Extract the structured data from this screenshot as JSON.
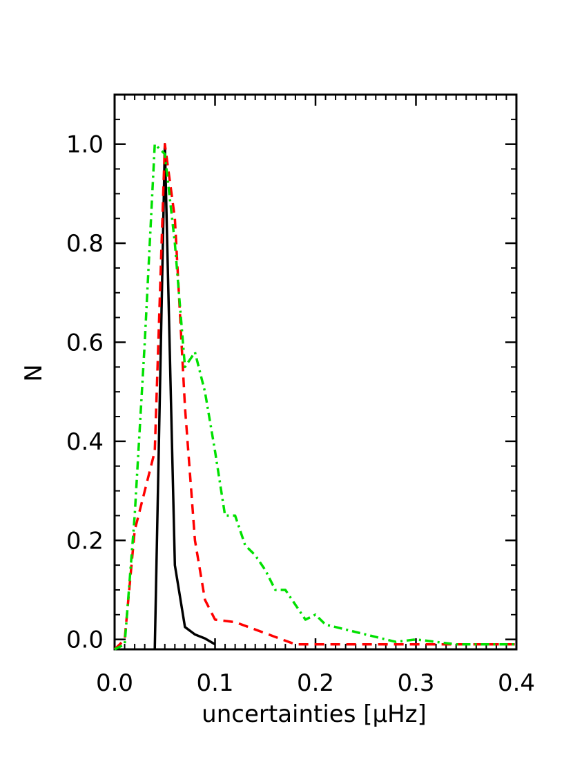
{
  "chart_data": {
    "type": "line",
    "xlabel": "uncertainties [μHz]",
    "ylabel": "N",
    "xlim": [
      0.0,
      0.4
    ],
    "ylim": [
      -0.02,
      1.1
    ],
    "x_ticks": [
      0.0,
      0.1,
      0.2,
      0.3,
      0.4
    ],
    "x_tick_labels": [
      "0.0",
      "0.1",
      "0.2",
      "0.3",
      "0.4"
    ],
    "y_ticks": [
      0.0,
      0.2,
      0.4,
      0.6,
      0.8,
      1.0
    ],
    "y_tick_labels": [
      "0.0",
      "0.2",
      "0.4",
      "0.6",
      "0.8",
      "1.0"
    ],
    "grid": false,
    "series": [
      {
        "color": "#000000",
        "style": "solid",
        "points": [
          [
            0.04,
            -0.02
          ],
          [
            0.05,
            1.0
          ],
          [
            0.06,
            0.15
          ],
          [
            0.07,
            0.025
          ],
          [
            0.08,
            0.01
          ],
          [
            0.09,
            0.002
          ],
          [
            0.1,
            -0.01
          ]
        ]
      },
      {
        "color": "#ff0000",
        "style": "dashed",
        "points": [
          [
            0.0,
            -0.02
          ],
          [
            0.01,
            0.0
          ],
          [
            0.02,
            0.22
          ],
          [
            0.03,
            0.3
          ],
          [
            0.04,
            0.38
          ],
          [
            0.05,
            1.0
          ],
          [
            0.06,
            0.85
          ],
          [
            0.07,
            0.47
          ],
          [
            0.08,
            0.2
          ],
          [
            0.09,
            0.08
          ],
          [
            0.1,
            0.04
          ],
          [
            0.12,
            0.035
          ],
          [
            0.14,
            0.02
          ],
          [
            0.16,
            0.005
          ],
          [
            0.18,
            -0.01
          ],
          [
            0.2,
            -0.01
          ],
          [
            0.25,
            -0.01
          ],
          [
            0.3,
            -0.01
          ],
          [
            0.35,
            -0.01
          ],
          [
            0.4,
            -0.01
          ]
        ]
      },
      {
        "color": "#00e000",
        "style": "dash-dot",
        "points": [
          [
            0.0,
            -0.02
          ],
          [
            0.01,
            -0.01
          ],
          [
            0.02,
            0.25
          ],
          [
            0.03,
            0.6
          ],
          [
            0.04,
            1.0
          ],
          [
            0.05,
            0.98
          ],
          [
            0.06,
            0.8
          ],
          [
            0.07,
            0.55
          ],
          [
            0.08,
            0.58
          ],
          [
            0.09,
            0.5
          ],
          [
            0.1,
            0.38
          ],
          [
            0.11,
            0.25
          ],
          [
            0.12,
            0.25
          ],
          [
            0.13,
            0.19
          ],
          [
            0.14,
            0.17
          ],
          [
            0.15,
            0.14
          ],
          [
            0.16,
            0.1
          ],
          [
            0.17,
            0.1
          ],
          [
            0.18,
            0.07
          ],
          [
            0.19,
            0.04
          ],
          [
            0.2,
            0.05
          ],
          [
            0.21,
            0.03
          ],
          [
            0.22,
            0.025
          ],
          [
            0.23,
            0.02
          ],
          [
            0.24,
            0.015
          ],
          [
            0.25,
            0.01
          ],
          [
            0.26,
            0.005
          ],
          [
            0.28,
            -0.005
          ],
          [
            0.3,
            0.0
          ],
          [
            0.32,
            -0.005
          ],
          [
            0.34,
            -0.01
          ],
          [
            0.36,
            -0.01
          ],
          [
            0.38,
            -0.01
          ],
          [
            0.4,
            -0.01
          ]
        ]
      }
    ]
  }
}
